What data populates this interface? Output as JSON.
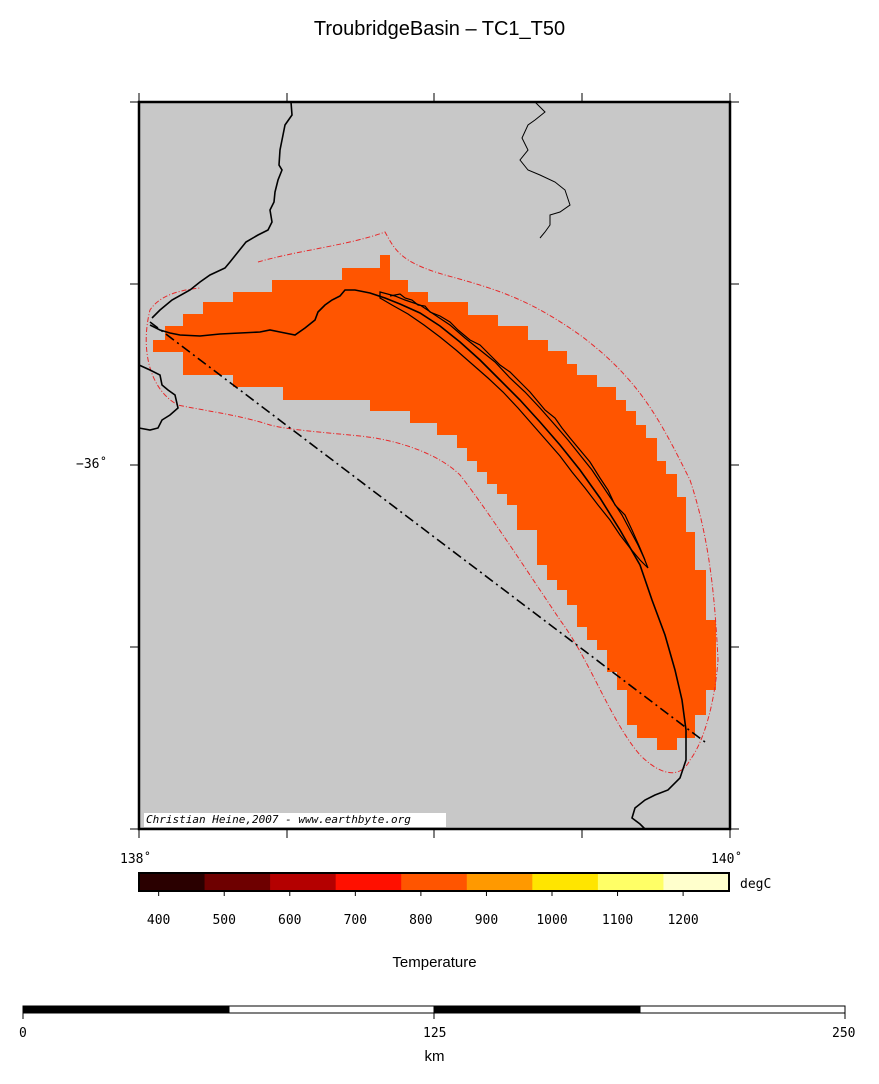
{
  "title": "TroubridgeBasin – TC1_T50",
  "map": {
    "lat_label": "−36˚",
    "lon_left_label": "138˚",
    "lon_right_label": "140˚",
    "credit": "Christian Heine,2007 - www.earthbyte.org",
    "colors": {
      "land": "#c8c8c8",
      "anomaly": "#ff5500",
      "outline": "#e8292b"
    }
  },
  "colorbar": {
    "unit": "degC",
    "label": "Temperature",
    "ticks": [
      "400",
      "500",
      "600",
      "700",
      "800",
      "900",
      "1000",
      "1100",
      "1200"
    ],
    "colors": [
      "#2a0000",
      "#6e0000",
      "#b40000",
      "#ff1000",
      "#ff5500",
      "#ff9900",
      "#ffe500",
      "#ffff66",
      "#ffffcc"
    ]
  },
  "scalebar": {
    "unit": "km",
    "ticks": [
      "0",
      "125",
      "250"
    ]
  }
}
